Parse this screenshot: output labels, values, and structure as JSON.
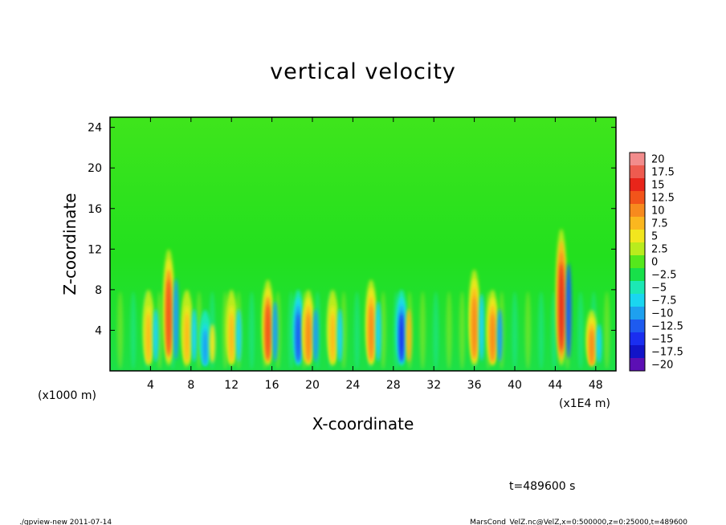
{
  "chart_data": {
    "type": "heatmap",
    "title": "vertical velocity",
    "xlabel": "X-coordinate",
    "ylabel": "Z-coordinate",
    "x_unit_left": "(x1000 m)",
    "x_unit_right": "(x1E4 m)",
    "xlim": [
      0,
      50
    ],
    "ylim": [
      0,
      25
    ],
    "x_ticks": [
      "4",
      "8",
      "12",
      "16",
      "20",
      "24",
      "28",
      "32",
      "36",
      "40",
      "44",
      "48"
    ],
    "y_ticks": [
      "4",
      "8",
      "12",
      "16",
      "20",
      "24"
    ],
    "colorbar": {
      "levels": [
        "20",
        "17.5",
        "15",
        "12.5",
        "10",
        "7.5",
        "5",
        "2.5",
        "0",
        "−2.5",
        "−5",
        "−7.5",
        "−10",
        "−12.5",
        "−15",
        "−17.5",
        "−20"
      ],
      "colors": [
        "#f28c8c",
        "#ee5b4f",
        "#e8251a",
        "#f2541a",
        "#f78a1e",
        "#fbb71f",
        "#f2e61e",
        "#b9ec1d",
        "#55e81c",
        "#18e04a",
        "#1ce8b4",
        "#1ad6f0",
        "#1ea0ef",
        "#1e5bef",
        "#1a2ef0",
        "#1214c8",
        "#5c0fb4"
      ]
    },
    "features": [
      {
        "x": 3.8,
        "z_top": 8,
        "value": 8
      },
      {
        "x": 5.8,
        "z_top": 12,
        "value": 14
      },
      {
        "x": 7.6,
        "z_top": 8,
        "value": 9
      },
      {
        "x": 9.4,
        "z_top": 6,
        "value": -9
      },
      {
        "x": 12,
        "z_top": 8,
        "value": 9
      },
      {
        "x": 15.6,
        "z_top": 9,
        "value": 14
      },
      {
        "x": 18.6,
        "z_top": 8,
        "value": -11
      },
      {
        "x": 19.6,
        "z_top": 8,
        "value": 11
      },
      {
        "x": 22,
        "z_top": 8,
        "value": 9
      },
      {
        "x": 25.8,
        "z_top": 9,
        "value": 10
      },
      {
        "x": 28.8,
        "z_top": 8,
        "value": -13
      },
      {
        "x": 36,
        "z_top": 10,
        "value": 10
      },
      {
        "x": 37.8,
        "z_top": 8,
        "value": 12
      },
      {
        "x": 44.6,
        "z_top": 14,
        "value": 15
      },
      {
        "x": 47.6,
        "z_top": 6,
        "value": 10
      }
    ]
  },
  "annotations": {
    "time": "t=489600 s",
    "footer_left": "./gpview-new   2011-07-14",
    "footer_right": "MarsCond_VelZ.nc@VelZ,x=0:500000,z=0:25000,t=489600"
  }
}
